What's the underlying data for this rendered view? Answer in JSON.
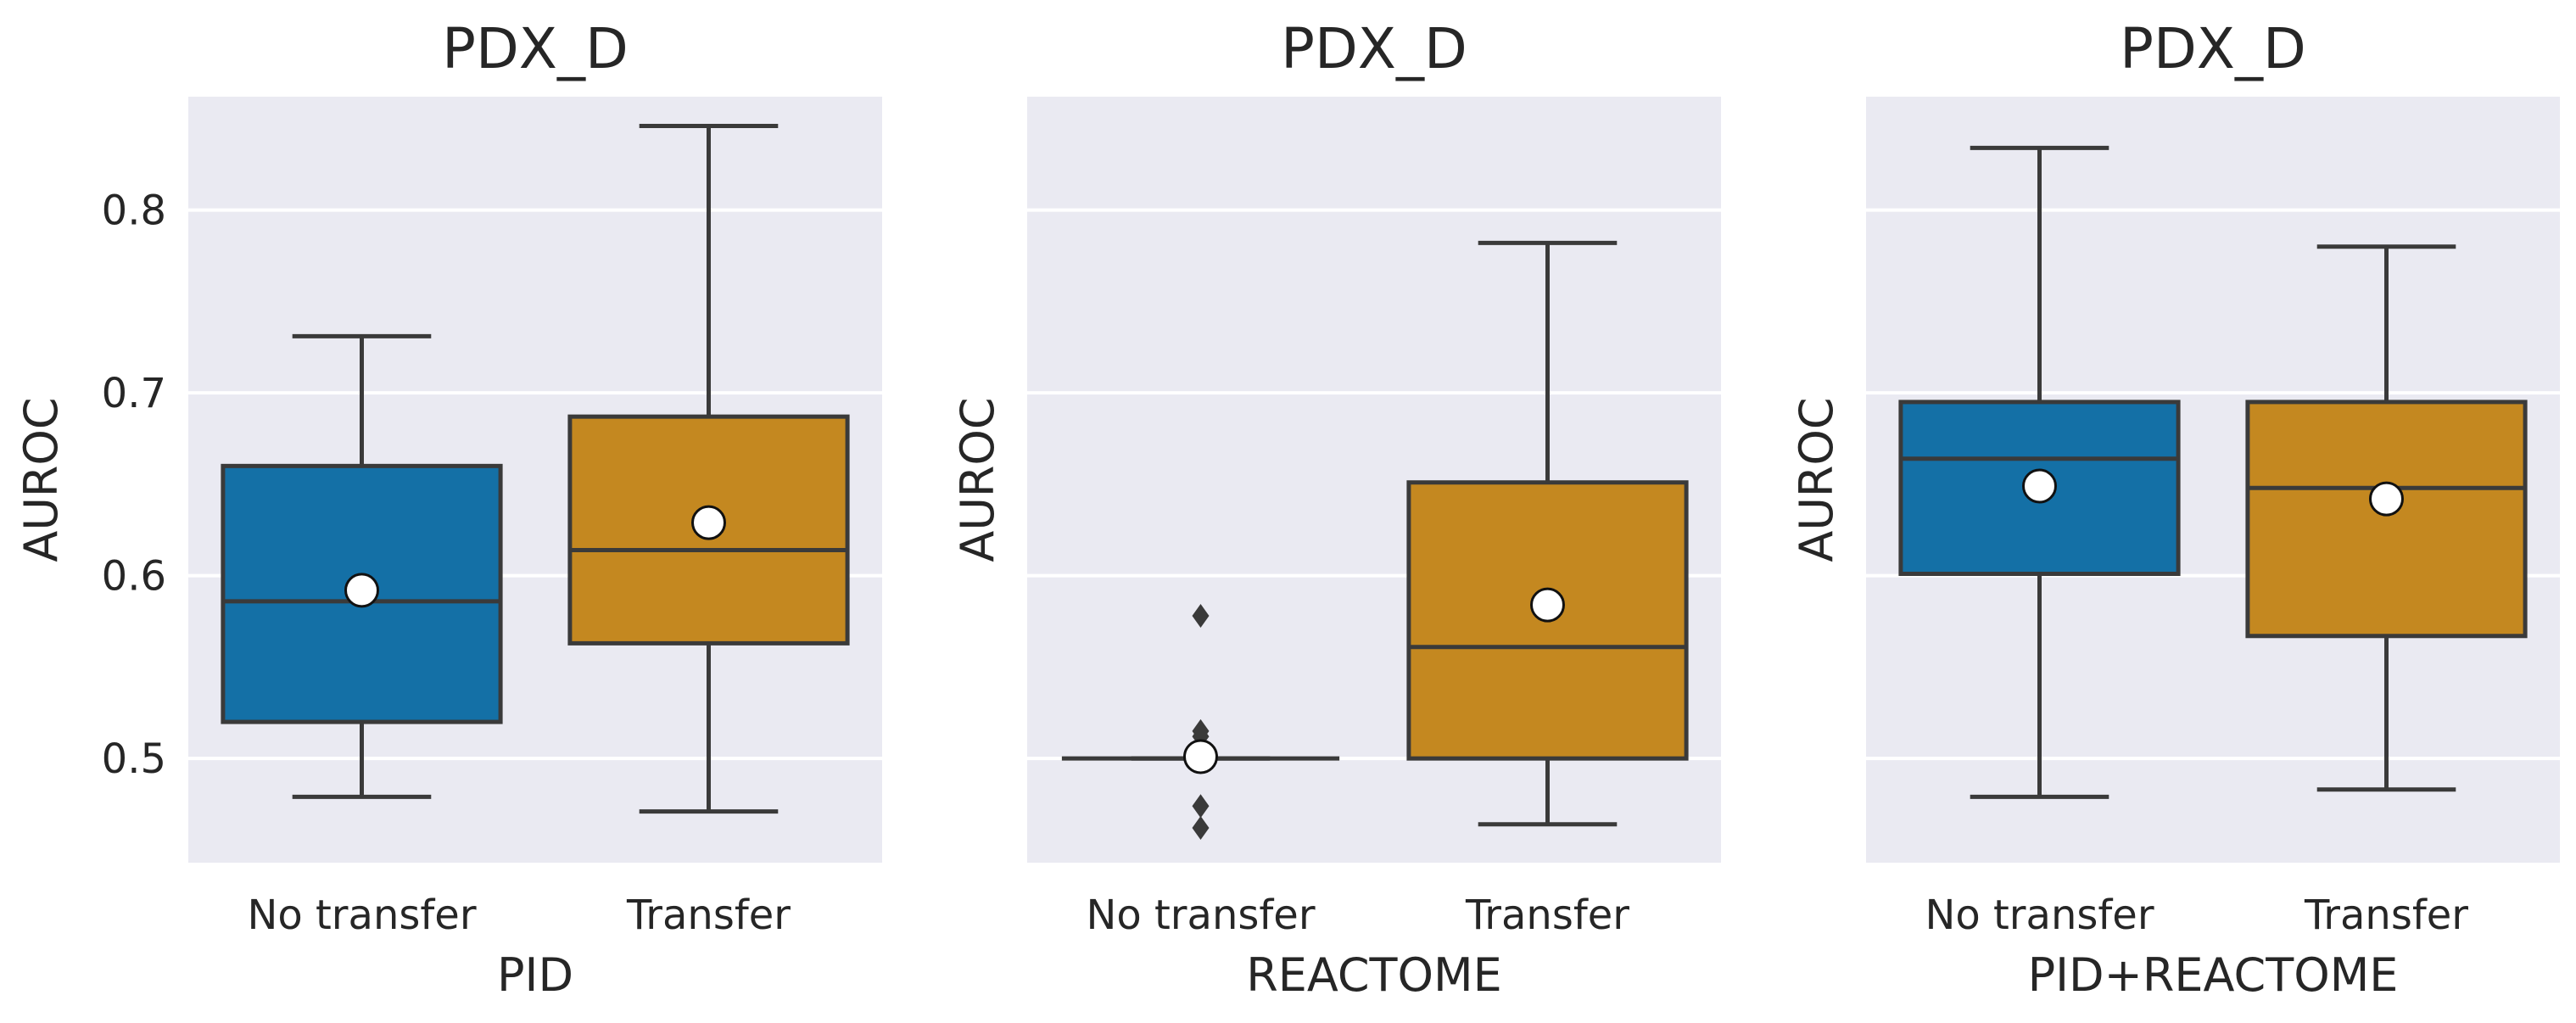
{
  "chart_data": [
    {
      "type": "box",
      "title": "PDX_D",
      "xlabel": "PID",
      "ylabel": "AUROC",
      "ylim": [
        0.443,
        0.862
      ],
      "yticks": [
        0.5,
        0.6,
        0.7,
        0.8
      ],
      "ytick_labels": [
        "0.5",
        "0.6",
        "0.7",
        "0.8"
      ],
      "grid": true,
      "categories": [
        "No transfer",
        "Transfer"
      ],
      "boxes": [
        {
          "category": "No transfer",
          "color": "#1470a6",
          "whislo": 0.479,
          "q1": 0.52,
          "median": 0.586,
          "q3": 0.66,
          "whishi": 0.731,
          "mean": 0.592,
          "fliers": []
        },
        {
          "category": "Transfer",
          "color": "#c48820",
          "whislo": 0.471,
          "q1": 0.563,
          "median": 0.614,
          "q3": 0.687,
          "whishi": 0.846,
          "mean": 0.629,
          "fliers": []
        }
      ]
    },
    {
      "type": "box",
      "title": "PDX_D",
      "xlabel": "REACTOME",
      "ylabel": "AUROC",
      "ylim": [
        0.443,
        0.862
      ],
      "yticks": [
        0.5,
        0.6,
        0.7,
        0.8
      ],
      "ytick_labels": [],
      "grid": true,
      "categories": [
        "No transfer",
        "Transfer"
      ],
      "boxes": [
        {
          "category": "No transfer",
          "color": "#1470a6",
          "whislo": 0.5,
          "q1": 0.5,
          "median": 0.5,
          "q3": 0.5,
          "whishi": 0.5,
          "mean": 0.501,
          "fliers": [
            0.578,
            0.515,
            0.512,
            0.474,
            0.462
          ]
        },
        {
          "category": "Transfer",
          "color": "#c48820",
          "whislo": 0.464,
          "q1": 0.5,
          "median": 0.561,
          "q3": 0.651,
          "whishi": 0.782,
          "mean": 0.584,
          "fliers": []
        }
      ]
    },
    {
      "type": "box",
      "title": "PDX_D",
      "xlabel": "PID+REACTOME",
      "ylabel": "AUROC",
      "ylim": [
        0.443,
        0.862
      ],
      "yticks": [
        0.5,
        0.6,
        0.7,
        0.8
      ],
      "ytick_labels": [],
      "grid": true,
      "categories": [
        "No transfer",
        "Transfer"
      ],
      "boxes": [
        {
          "category": "No transfer",
          "color": "#1470a6",
          "whislo": 0.479,
          "q1": 0.601,
          "median": 0.664,
          "q3": 0.695,
          "whishi": 0.834,
          "mean": 0.649,
          "fliers": []
        },
        {
          "category": "Transfer",
          "color": "#c48820",
          "whislo": 0.483,
          "q1": 0.567,
          "median": 0.648,
          "q3": 0.695,
          "whishi": 0.78,
          "mean": 0.642,
          "fliers": []
        }
      ]
    }
  ]
}
